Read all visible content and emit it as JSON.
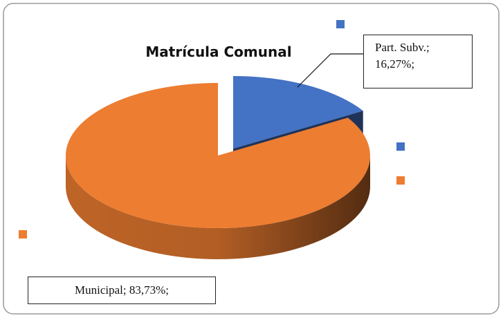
{
  "chart_data": {
    "type": "pie3d",
    "title": "Matrícula Comunal",
    "values": [
      16.27,
      83.73
    ],
    "value_labels": [
      "Part. Subv.; 16,27%;",
      "Municipal; 83,73%;"
    ],
    "colors": [
      "#4472c4",
      "#ed7d31"
    ]
  }
}
